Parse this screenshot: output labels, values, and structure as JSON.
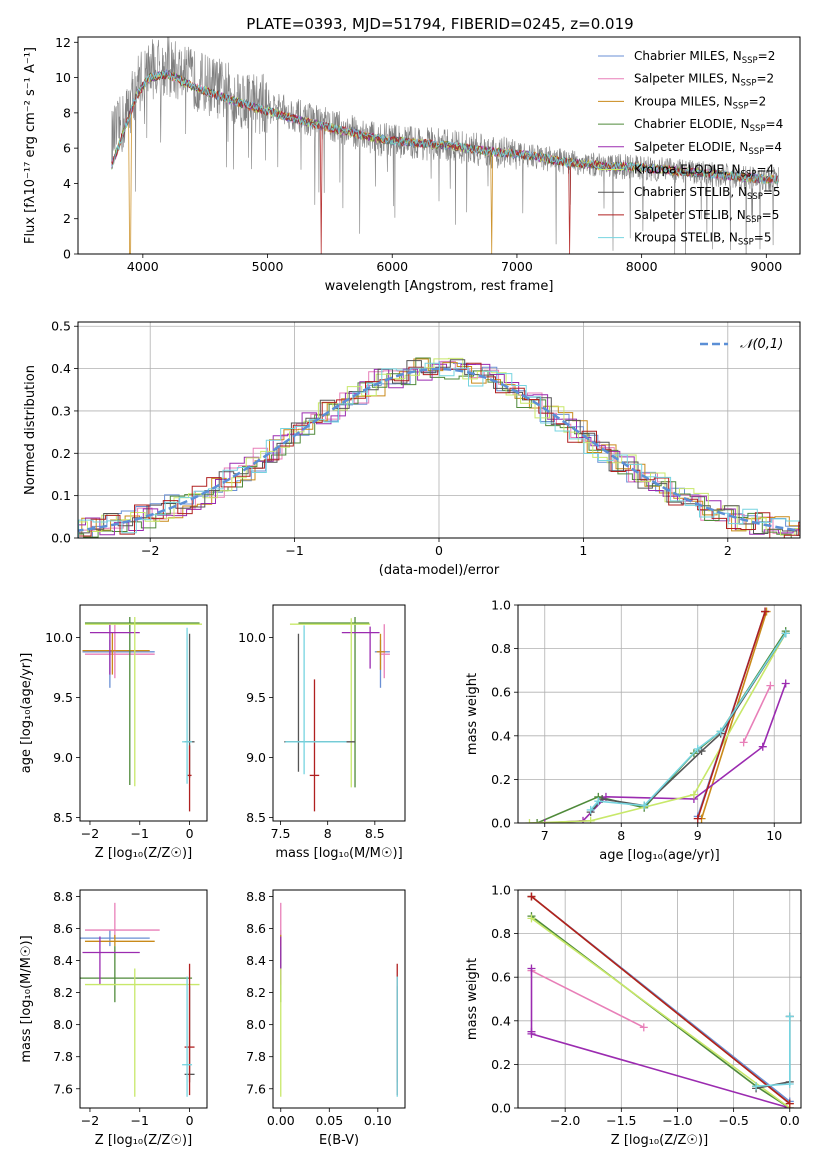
{
  "figure": {
    "title": "PLATE=0393, MJD=51794, FIBERID=0245, z=0.019"
  },
  "models": [
    {
      "name": "Chabrier MILES",
      "nssp": "2",
      "color": "#6a8fd4"
    },
    {
      "name": "Salpeter MILES",
      "nssp": "2",
      "color": "#e87fb8"
    },
    {
      "name": "Kroupa MILES",
      "nssp": "2",
      "color": "#c98a1a"
    },
    {
      "name": "Chabrier ELODIE",
      "nssp": "4",
      "color": "#4f8a3a"
    },
    {
      "name": "Salpeter ELODIE",
      "nssp": "4",
      "color": "#9b2bb0"
    },
    {
      "name": "Kroupa ELODIE",
      "nssp": "4",
      "color": "#c8e86a"
    },
    {
      "name": "Chabrier STELIB",
      "nssp": "5",
      "color": "#555555"
    },
    {
      "name": "Salpeter STELIB",
      "nssp": "5",
      "color": "#b02020"
    },
    {
      "name": "Kroupa STELIB",
      "nssp": "5",
      "color": "#76d4e0"
    }
  ],
  "chart_data": [
    {
      "id": "spectrum",
      "type": "line",
      "xlabel": "wavelength [Angstrom, rest frame]",
      "ylabel": "Flux [fλ10⁻¹⁷ erg cm⁻² s⁻¹ A⁻¹]",
      "xlim": [
        3480,
        9270
      ],
      "ylim": [
        0,
        12.3
      ],
      "xticks": [
        4000,
        5000,
        6000,
        7000,
        8000,
        9000
      ],
      "yticks": [
        0,
        2,
        4,
        6,
        8,
        10,
        12
      ],
      "data_color": "#808080",
      "data_trend": {
        "x": [
          3750,
          3850,
          3950,
          4050,
          4200,
          4400,
          4600,
          4800,
          5000,
          5300,
          5600,
          5900,
          6200,
          6500,
          6800,
          7100,
          7400,
          7700,
          8000,
          8300,
          8600,
          8900,
          9100
        ],
        "y": [
          6.5,
          7.5,
          9.6,
          10.5,
          10.6,
          9.9,
          9.4,
          8.8,
          8.4,
          7.7,
          7.1,
          6.5,
          6.3,
          6.1,
          5.8,
          5.6,
          5.2,
          5.0,
          4.9,
          4.7,
          4.5,
          4.3,
          4.2
        ]
      },
      "model_trend": {
        "x": [
          3750,
          3850,
          3950,
          4050,
          4200,
          4400,
          4600,
          4800,
          5000,
          5300,
          5600,
          5900,
          6200,
          6500,
          6800,
          7100,
          7400,
          7700,
          8000,
          8300,
          8600,
          8900,
          9100
        ],
        "y": [
          5.0,
          7.0,
          9.0,
          10.0,
          10.2,
          9.5,
          9.0,
          8.5,
          8.1,
          7.5,
          7.0,
          6.5,
          6.3,
          6.1,
          5.8,
          5.6,
          5.2,
          5.0,
          4.9,
          4.7,
          4.5,
          4.3,
          4.2
        ]
      },
      "legend_position": "top-right"
    },
    {
      "id": "residuals",
      "type": "step",
      "xlabel": "(data-model)/error",
      "ylabel": "Normed distribution",
      "xlim": [
        -2.5,
        2.5
      ],
      "ylim": [
        0,
        0.51
      ],
      "xticks": [
        -2,
        -1,
        0,
        1,
        2
      ],
      "yticks": [
        0.0,
        0.1,
        0.2,
        0.3,
        0.4,
        0.5
      ],
      "gaussian": {
        "label": "𝒩(0,1)",
        "color": "#5b8fd6",
        "mu": 0,
        "sigma": 1
      },
      "legend_position": "top-right",
      "grid": true
    },
    {
      "id": "age_vs_Z",
      "type": "errorbar",
      "xlabel": "Z [log₁₀(Z/Z☉)]",
      "ylabel": "age  [log₁₀(age/yr)]",
      "xlim": [
        -2.2,
        0.35
      ],
      "ylim": [
        8.47,
        10.27
      ],
      "xticks": [
        -2,
        -1,
        0
      ],
      "yticks": [
        8.5,
        9.0,
        9.5,
        10.0
      ],
      "points": [
        {
          "m": 0,
          "x": -1.6,
          "xerr": [
            0.55,
            0.9
          ],
          "y": 9.88,
          "yerr": [
            0.3,
            0.1
          ]
        },
        {
          "m": 1,
          "x": -1.5,
          "xerr": [
            0.6,
            0.8
          ],
          "y": 9.86,
          "yerr": [
            0.2,
            0.25
          ]
        },
        {
          "m": 2,
          "x": -1.55,
          "xerr": [
            0.6,
            0.75
          ],
          "y": 9.89,
          "yerr": [
            0.2,
            0.15
          ]
        },
        {
          "m": 3,
          "x": -1.2,
          "xerr": [
            0.9,
            1.4
          ],
          "y": 10.12,
          "yerr": [
            1.35,
            0.05
          ]
        },
        {
          "m": 4,
          "x": -1.6,
          "xerr": [
            0.4,
            0.6
          ],
          "y": 10.04,
          "yerr": [
            0.35,
            0.08
          ]
        },
        {
          "m": 5,
          "x": -1.1,
          "xerr": [
            1.0,
            1.35
          ],
          "y": 10.11,
          "yerr": [
            1.35,
            0.06
          ]
        },
        {
          "m": 6,
          "x": 0.0,
          "xerr": [
            0.1,
            0.1
          ],
          "y": 9.13,
          "yerr": [
            0.3,
            0.9
          ]
        },
        {
          "m": 7,
          "x": 0.0,
          "xerr": [
            0.04,
            0.04
          ],
          "y": 8.85,
          "yerr": [
            0.3,
            0.25
          ]
        },
        {
          "m": 8,
          "x": -0.05,
          "xerr": [
            0.1,
            0.1
          ],
          "y": 9.13,
          "yerr": [
            0.35,
            0.95
          ]
        }
      ]
    },
    {
      "id": "age_vs_mass",
      "type": "errorbar",
      "xlabel": "mass [log₁₀(M/M☉)]",
      "ylabel": "",
      "xlim": [
        7.42,
        8.82
      ],
      "ylim": [
        8.47,
        10.27
      ],
      "xticks": [
        7.5,
        8.0,
        8.5
      ],
      "yticks": [
        8.5,
        9.0,
        9.5,
        10.0
      ],
      "points": [
        {
          "m": 0,
          "x": 8.56,
          "xerr": [
            0.06,
            0.1
          ],
          "y": 9.88,
          "yerr": [
            0.3,
            0.1
          ]
        },
        {
          "m": 1,
          "x": 8.6,
          "xerr": [
            0.05,
            0.06
          ],
          "y": 9.86,
          "yerr": [
            0.2,
            0.25
          ]
        },
        {
          "m": 2,
          "x": 8.56,
          "xerr": [
            0.04,
            0.05
          ],
          "y": 9.88,
          "yerr": [
            0.15,
            0.15
          ]
        },
        {
          "m": 3,
          "x": 8.29,
          "xerr": [
            0.6,
            0.15
          ],
          "y": 10.12,
          "yerr": [
            1.37,
            0.05
          ]
        },
        {
          "m": 4,
          "x": 8.45,
          "xerr": [
            0.3,
            0.1
          ],
          "y": 10.04,
          "yerr": [
            0.3,
            0.05
          ]
        },
        {
          "m": 5,
          "x": 8.25,
          "xerr": [
            0.65,
            0.2
          ],
          "y": 10.11,
          "yerr": [
            1.36,
            0.05
          ]
        },
        {
          "m": 6,
          "x": 7.69,
          "xerr": [
            0.15,
            0.6
          ],
          "y": 9.13,
          "yerr": [
            0.25,
            0.9
          ]
        },
        {
          "m": 7,
          "x": 7.86,
          "xerr": [
            0.05,
            0.05
          ],
          "y": 8.85,
          "yerr": [
            0.3,
            0.8
          ]
        },
        {
          "m": 8,
          "x": 7.75,
          "xerr": [
            0.2,
            0.45
          ],
          "y": 9.13,
          "yerr": [
            0.27,
            0.97
          ]
        }
      ]
    },
    {
      "id": "weight_vs_age",
      "type": "line",
      "xlabel": "age  [log₁₀(age/yr)]",
      "ylabel": "mass weight",
      "xlim": [
        6.65,
        10.35
      ],
      "ylim": [
        0,
        1.0
      ],
      "xticks": [
        7,
        8,
        9,
        10
      ],
      "yticks": [
        0.0,
        0.2,
        0.4,
        0.6,
        0.8,
        1.0
      ],
      "grid": true,
      "series": [
        {
          "m": 0,
          "x": [
            9.0,
            9.88
          ],
          "y": [
            0.03,
            0.97
          ]
        },
        {
          "m": 1,
          "x": [
            9.6,
            9.95
          ],
          "y": [
            0.37,
            0.63
          ]
        },
        {
          "m": 2,
          "x": [
            9.05,
            9.9
          ],
          "y": [
            0.02,
            0.97
          ]
        },
        {
          "m": 3,
          "x": [
            6.9,
            7.7,
            8.3,
            8.95,
            9.3,
            10.15
          ],
          "y": [
            0.0,
            0.12,
            0.07,
            0.32,
            0.42,
            0.88
          ]
        },
        {
          "m": 4,
          "x": [
            7.0,
            7.5,
            7.8,
            8.95,
            9.85,
            10.15
          ],
          "y": [
            0.0,
            0.01,
            0.12,
            0.11,
            0.35,
            0.64
          ]
        },
        {
          "m": 5,
          "x": [
            6.8,
            7.6,
            8.95,
            10.15
          ],
          "y": [
            0.0,
            0.01,
            0.13,
            0.87
          ]
        },
        {
          "m": 6,
          "x": [
            7.6,
            7.75,
            8.3,
            9.05,
            9.3,
            10.15
          ],
          "y": [
            0.05,
            0.11,
            0.08,
            0.33,
            0.41,
            0.87
          ]
        },
        {
          "m": 7,
          "x": [
            9.0,
            9.88
          ],
          "y": [
            0.02,
            0.97
          ]
        },
        {
          "m": 8,
          "x": [
            7.6,
            7.7,
            8.3,
            9.0,
            9.3,
            10.15
          ],
          "y": [
            0.06,
            0.1,
            0.08,
            0.34,
            0.42,
            0.87
          ]
        }
      ]
    },
    {
      "id": "mass_vs_Z",
      "type": "errorbar",
      "xlabel": "Z [log₁₀(Z/Z☉)]",
      "ylabel": "mass [log₁₀(M/M☉)]",
      "xlim": [
        -2.2,
        0.35
      ],
      "ylim": [
        7.48,
        8.84
      ],
      "xticks": [
        -2,
        -1,
        0
      ],
      "yticks": [
        7.6,
        7.8,
        8.0,
        8.2,
        8.4,
        8.6,
        8.8
      ],
      "points": [
        {
          "m": 0,
          "x": -1.6,
          "xerr": [
            0.7,
            0.8
          ],
          "y": 8.54,
          "yerr": [
            0.05,
            0.05
          ]
        },
        {
          "m": 1,
          "x": -1.5,
          "xerr": [
            0.6,
            0.9
          ],
          "y": 8.59,
          "yerr": [
            0.05,
            0.17
          ]
        },
        {
          "m": 2,
          "x": -1.5,
          "xerr": [
            0.6,
            0.8
          ],
          "y": 8.52,
          "yerr": [
            0.03,
            0.04
          ]
        },
        {
          "m": 3,
          "x": -1.5,
          "xerr": [
            0.7,
            1.55
          ],
          "y": 8.29,
          "yerr": [
            0.15,
            0.2
          ]
        },
        {
          "m": 4,
          "x": -1.8,
          "xerr": [
            0.35,
            0.8
          ],
          "y": 8.45,
          "yerr": [
            0.2,
            0.1
          ]
        },
        {
          "m": 5,
          "x": -1.1,
          "xerr": [
            1.0,
            1.3
          ],
          "y": 8.25,
          "yerr": [
            0.7,
            0.1
          ]
        },
        {
          "m": 6,
          "x": 0.0,
          "xerr": [
            0.1,
            0.1
          ],
          "y": 7.69,
          "yerr": [
            0.05,
            0.55
          ]
        },
        {
          "m": 7,
          "x": 0.0,
          "xerr": [
            0.1,
            0.1
          ],
          "y": 7.86,
          "yerr": [
            0.3,
            0.52
          ]
        },
        {
          "m": 8,
          "x": -0.05,
          "xerr": [
            0.1,
            0.1
          ],
          "y": 7.75,
          "yerr": [
            0.2,
            0.55
          ]
        }
      ]
    },
    {
      "id": "mass_vs_ebv",
      "type": "errorbar",
      "xlabel": "E(B-V)",
      "ylabel": "",
      "xlim": [
        -0.008,
        0.128
      ],
      "ylim": [
        7.48,
        8.84
      ],
      "xticks": [
        0.0,
        0.05,
        0.1
      ],
      "yticks": [
        7.6,
        7.8,
        8.0,
        8.2,
        8.4,
        8.6,
        8.8
      ],
      "points": [
        {
          "m": 0,
          "x": 0.0,
          "xerr": [
            0,
            0
          ],
          "y": 8.54,
          "yerr": [
            0.05,
            0.05
          ]
        },
        {
          "m": 1,
          "x": 0.0,
          "xerr": [
            0,
            0
          ],
          "y": 8.59,
          "yerr": [
            0.05,
            0.17
          ]
        },
        {
          "m": 2,
          "x": 0.0,
          "xerr": [
            0,
            0
          ],
          "y": 8.52,
          "yerr": [
            0.03,
            0.04
          ]
        },
        {
          "m": 3,
          "x": 0.0,
          "xerr": [
            0,
            0
          ],
          "y": 8.29,
          "yerr": [
            0.15,
            0.2
          ]
        },
        {
          "m": 4,
          "x": 0.0,
          "xerr": [
            0,
            0
          ],
          "y": 8.45,
          "yerr": [
            0.2,
            0.1
          ]
        },
        {
          "m": 5,
          "x": 0.0,
          "xerr": [
            0,
            0
          ],
          "y": 8.25,
          "yerr": [
            0.7,
            0.1
          ]
        },
        {
          "m": 6,
          "x": 0.12,
          "xerr": [
            0,
            0
          ],
          "y": 7.69,
          "yerr": [
            0.05,
            0.55
          ]
        },
        {
          "m": 7,
          "x": 0.12,
          "xerr": [
            0,
            0
          ],
          "y": 7.86,
          "yerr": [
            0.3,
            0.52
          ]
        },
        {
          "m": 8,
          "x": 0.12,
          "xerr": [
            0,
            0
          ],
          "y": 7.75,
          "yerr": [
            0.2,
            0.55
          ]
        }
      ]
    },
    {
      "id": "weight_vs_Z",
      "type": "line",
      "xlabel": "Z [log₁₀(Z/Z☉)]",
      "ylabel": "mass weight",
      "xlim": [
        -2.42,
        0.1
      ],
      "ylim": [
        0,
        1.0
      ],
      "xticks": [
        -2.0,
        -1.5,
        -1.0,
        -0.5,
        0.0
      ],
      "yticks": [
        0.0,
        0.2,
        0.4,
        0.6,
        0.8,
        1.0
      ],
      "grid": true,
      "series": [
        {
          "m": 0,
          "x": [
            -2.3,
            0.0
          ],
          "y": [
            0.97,
            0.03
          ]
        },
        {
          "m": 1,
          "x": [
            -2.3,
            -1.3
          ],
          "y": [
            0.63,
            0.37
          ]
        },
        {
          "m": 2,
          "x": [
            -2.3,
            0.0
          ],
          "y": [
            0.97,
            0.02
          ]
        },
        {
          "m": 3,
          "x": [
            -2.3,
            -0.3,
            0.0
          ],
          "y": [
            0.88,
            0.1,
            0.0
          ]
        },
        {
          "m": 4,
          "x": [
            -2.3,
            -2.3,
            -2.3,
            0.0
          ],
          "y": [
            0.64,
            0.35,
            0.34,
            0.0
          ]
        },
        {
          "m": 5,
          "x": [
            -2.3,
            0.0
          ],
          "y": [
            0.87,
            0.0
          ]
        },
        {
          "m": 6,
          "x": [
            -0.3,
            0.0,
            0.0
          ],
          "y": [
            0.09,
            0.12,
            0.42
          ]
        },
        {
          "m": 7,
          "x": [
            -2.3,
            0.0
          ],
          "y": [
            0.97,
            0.02
          ]
        },
        {
          "m": 8,
          "x": [
            -0.3,
            0.0,
            0.0
          ],
          "y": [
            0.1,
            0.11,
            0.42
          ]
        }
      ]
    }
  ]
}
